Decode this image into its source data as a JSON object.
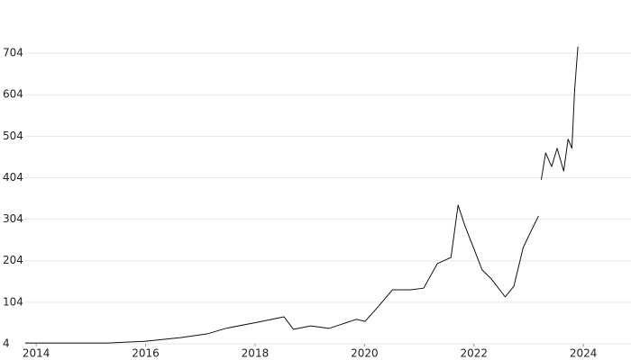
{
  "chart_data": {
    "type": "line",
    "x": [
      2013.8,
      2015.32,
      2015.98,
      2016.64,
      2017.13,
      2017.46,
      2018.12,
      2018.53,
      2018.7,
      2019.02,
      2019.35,
      2019.85,
      2020.01,
      2020.26,
      2020.51,
      2020.84,
      2021.08,
      2021.33,
      2021.58,
      2021.71,
      2021.83,
      2021.99,
      2022.15,
      2022.32,
      2022.57,
      2022.73,
      2022.9,
      2023.06,
      2023.18,
      2023.2,
      2023.23,
      2023.31,
      2023.42,
      2023.52,
      2023.64,
      2023.72,
      2023.79,
      2023.84,
      2023.9
    ],
    "values": [
      6,
      6,
      10,
      19,
      28,
      41,
      58,
      69,
      39,
      47,
      41,
      63,
      58,
      95,
      134,
      134,
      138,
      197,
      212,
      338,
      290,
      236,
      182,
      160,
      117,
      143,
      236,
      280,
      312,
      null,
      399,
      464,
      431,
      475,
      420,
      497,
      475,
      616,
      720
    ],
    "color": "#111111",
    "xlim": [
      2013.8,
      2024.87
    ],
    "xticks": [
      2014,
      2016,
      2018,
      2020,
      2022,
      2024
    ],
    "ylim": [
      4,
      830
    ],
    "yticks": [
      4,
      104,
      204,
      304,
      404,
      504,
      604,
      704
    ],
    "grid": true
  }
}
